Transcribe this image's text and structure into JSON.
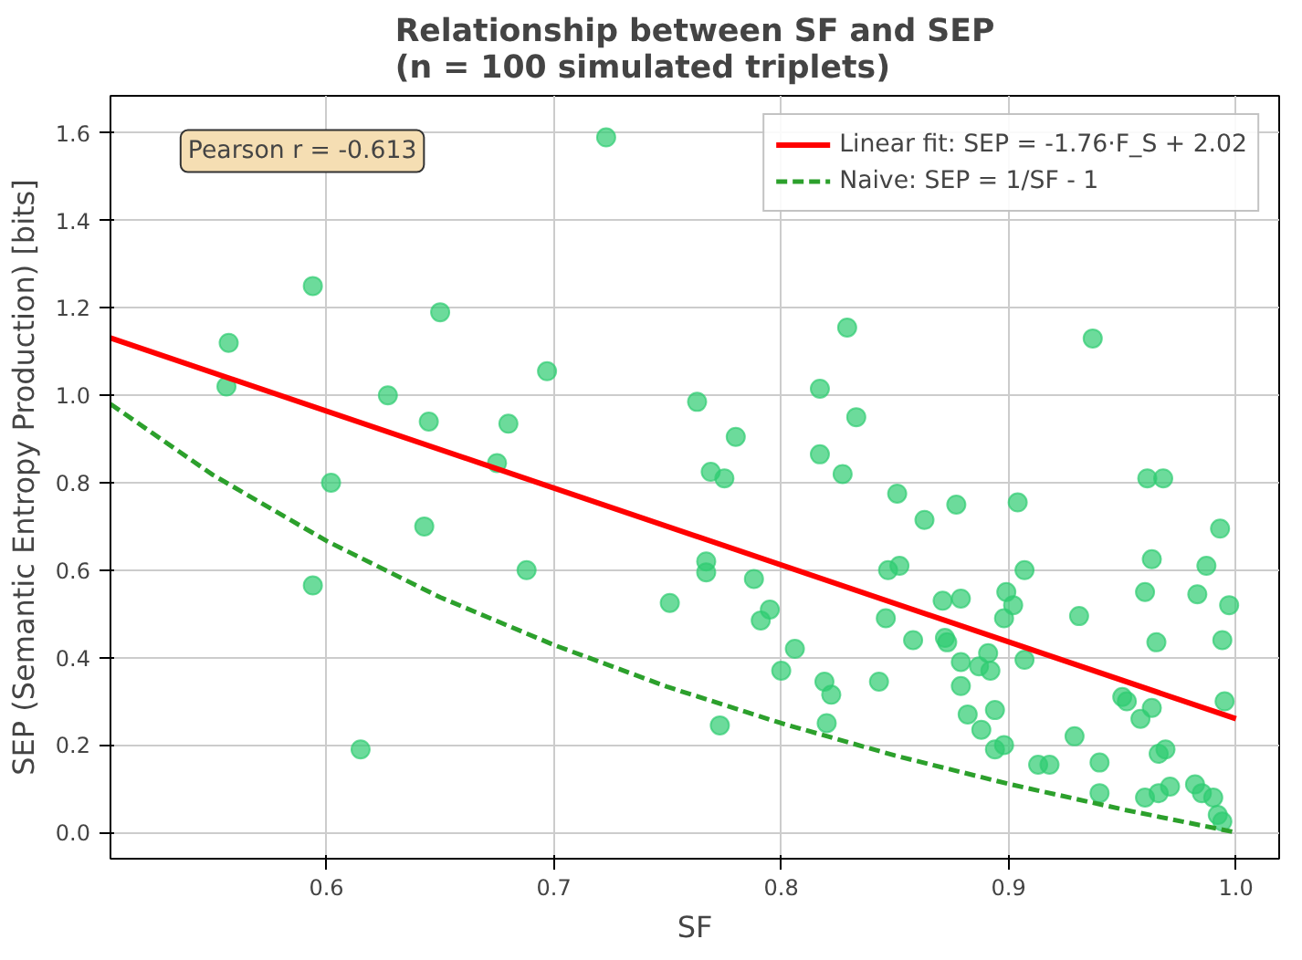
{
  "chart_data": {
    "type": "scatter",
    "title": "Relationship between SF and SEP\n(n = 100 simulated triplets)",
    "xlabel": "SF",
    "ylabel": "SEP (Semantic Entropy Production) [bits]",
    "xlim": [
      0.505,
      1.019
    ],
    "ylim": [
      -0.06,
      1.685
    ],
    "xticks": [
      0.6,
      0.7,
      0.8,
      0.9,
      {
        "value": 1,
        "label": "1.0"
      }
    ],
    "yticks": [
      {
        "value": 0,
        "label": "0.0"
      },
      0.2,
      0.4,
      0.6,
      0.8,
      {
        "value": 1,
        "label": "1.0"
      },
      1.2,
      1.4,
      1.6
    ],
    "grid": true,
    "legend": "top right",
    "annotations": [
      "Pearson r = -0.613"
    ],
    "series": [
      {
        "marker": "circle",
        "color": "#2ecc71",
        "x": [
          0.557,
          0.556,
          0.594,
          0.65,
          0.627,
          0.602,
          0.645,
          0.594,
          0.643,
          0.615,
          0.697,
          0.68,
          0.675,
          0.688,
          0.723,
          0.763,
          0.78,
          0.769,
          0.775,
          0.767,
          0.767,
          0.751,
          0.773,
          0.788,
          0.795,
          0.791,
          0.8,
          0.806,
          0.817,
          0.829,
          0.817,
          0.827,
          0.833,
          0.819,
          0.822,
          0.82,
          0.843,
          0.846,
          0.847,
          0.852,
          0.851,
          0.863,
          0.858,
          0.877,
          0.904,
          0.961,
          0.968,
          0.993,
          0.871,
          0.879,
          0.872,
          0.873,
          0.879,
          0.887,
          0.891,
          0.892,
          0.879,
          0.882,
          0.894,
          0.888,
          0.894,
          0.898,
          0.899,
          0.902,
          0.898,
          0.907,
          0.907,
          0.913,
          0.918,
          0.931,
          0.929,
          0.94,
          0.94,
          0.937,
          0.95,
          0.952,
          0.958,
          0.963,
          0.96,
          0.963,
          0.965,
          0.966,
          0.969,
          0.96,
          0.966,
          0.971,
          0.983,
          0.987,
          0.997,
          0.994,
          0.995,
          0.982,
          0.985,
          0.99,
          0.992,
          0.994
        ],
        "values": [
          1.12,
          1.02,
          1.25,
          1.19,
          1.0,
          0.8,
          0.94,
          0.565,
          0.7,
          0.19,
          1.055,
          0.935,
          0.845,
          0.6,
          1.59,
          0.985,
          0.905,
          0.825,
          0.81,
          0.62,
          0.595,
          0.525,
          0.245,
          0.58,
          0.51,
          0.485,
          0.37,
          0.42,
          1.015,
          1.155,
          0.865,
          0.82,
          0.95,
          0.345,
          0.315,
          0.25,
          0.345,
          0.49,
          0.6,
          0.61,
          0.775,
          0.715,
          0.44,
          0.75,
          0.755,
          0.81,
          0.81,
          0.695,
          0.53,
          0.535,
          0.445,
          0.435,
          0.39,
          0.38,
          0.41,
          0.37,
          0.335,
          0.27,
          0.28,
          0.235,
          0.19,
          0.2,
          0.55,
          0.52,
          0.49,
          0.6,
          0.395,
          0.155,
          0.155,
          0.495,
          0.22,
          0.16,
          0.09,
          1.13,
          0.31,
          0.3,
          0.26,
          0.285,
          0.55,
          0.625,
          0.435,
          0.18,
          0.19,
          0.08,
          0.09,
          0.105,
          0.545,
          0.61,
          0.52,
          0.44,
          0.3,
          0.11,
          0.09,
          0.08,
          0.04,
          0.025
        ]
      },
      {
        "type": "line",
        "name": "Linear fit: SEP = -1.76·F_S + 2.02",
        "color": "#ff0000",
        "marker": "none",
        "line_style": "solid",
        "x": [
          0.505,
          1.0
        ],
        "values": [
          1.131,
          0.26
        ]
      },
      {
        "type": "line",
        "name": "Naive: SEP = 1/SF - 1",
        "color": "#2ca02c",
        "marker": "none",
        "line_style": "dashed",
        "x": [
          0.505,
          0.55,
          0.6,
          0.65,
          0.7,
          0.75,
          0.8,
          0.85,
          0.9,
          0.95,
          1.0
        ],
        "values": [
          0.98,
          0.818,
          0.667,
          0.538,
          0.429,
          0.333,
          0.25,
          0.176,
          0.111,
          0.053,
          0.0
        ]
      }
    ]
  }
}
